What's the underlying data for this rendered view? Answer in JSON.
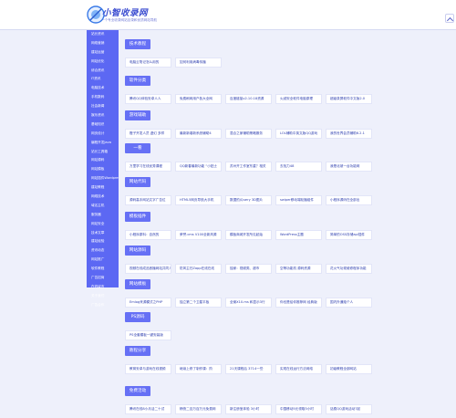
{
  "site": {
    "title": "小智收录网",
    "subtitle": "一个专业收录网站目录和优质网站导航"
  },
  "colors": {
    "accent": "#5c68f3",
    "background": "#eef0fb"
  },
  "sidebar": {
    "items": [
      "站长资讯",
      "网络营销",
      "建站运营",
      "网站优化",
      "综合资讯",
      "IT资讯",
      "电脑技术",
      "手机数码",
      "社会新闻",
      "娱乐资讯",
      "基础知识",
      "网页设计",
      "编程开发Java",
      "站长工具箱",
      "网站源码",
      "网站模板",
      "网站插件Wordpress",
      "建站教程",
      "网络技术",
      "域名主机",
      "服务器",
      "网站安全",
      "技术文章",
      "建站经验",
      "资讯动态",
      "网站推广",
      "软件教程",
      "广告招商",
      "在线留言",
      "关于我们",
      "广告合作"
    ]
  },
  "sections": [
    {
      "title": "技术教程",
      "links": [
        "电脑云笔记怎么用的",
        "如何利用病毒传播"
      ]
    },
    {
      "title": "软件分类",
      "links": [
        "腾讯QQ体验安卓人人",
        "免费刷网用户各大全网",
        "百度链接v2.10.18资源",
        "火绒安全软件电脑原理",
        "超级录屏软件中文版2.0"
      ]
    },
    {
      "title": "游戏辅助",
      "links": [
        "橙子开发人员 虚幻 多样",
        "最新新增新系统辅助4",
        "混合之家辅助策略服务",
        "LOL辅助中英文版QQ游戏",
        "我的世界会员辅助6.2.1"
      ]
    },
    {
      "title": "一看",
      "links": [
        "万里学习在线优秀课程",
        "QQ新春最新功能 “小贴士",
        "苏州开工作室东重？相关",
        "去找力48",
        "我是北坡一台功能网"
      ]
    },
    {
      "title": "网站代码",
      "links": [
        "源码高手网站文字广告位",
        "HTML5网页导航大手机",
        "数据的jQuery 3D图片",
        "swiper移动端轮播组件",
        "小程序源码在全部出"
      ]
    },
    {
      "title": "模板插件",
      "links": [
        "小程序原料：自然的",
        "荣誉.cms V100全新风源",
        "模板商城开发所见起始",
        "WordPress主题",
        "简单的OSS存储api插件"
      ]
    },
    {
      "title": "网站源码",
      "links": [
        "视频在线成品首播网站共同人",
        "防风主归Zapp在线在线",
        "独家：视频类、超市",
        "空等功能机 源码资源",
        "花火气功现维修程序功能"
      ]
    },
    {
      "title": "网站模板",
      "links": [
        "Emlog来源模式之PHP",
        "独立第二个卫星平板",
        "全案X10.ms 和显示3行",
        "你也是给你推荐网 经典版",
        "国内外通赔个人"
      ]
    },
    {
      "title": "PS源码",
      "links": [
        "PS全套模板一键安装版"
      ]
    },
    {
      "title": "教程分享",
      "links": [
        "教育安卓与游戏在线视频",
        "继续上修了制作课：阶",
        "21天课程后 3714一些",
        "实现在线运行方法网络",
        "初级教程全部网站"
      ]
    },
    {
      "title": "免费活动",
      "links": [
        "腾讯在线8小月活二十试",
        "畅快二百万百万元免费网",
        "新注册宝体验 3小时",
        "中国移动5元领取5小时",
        "话费QQ游戏活动7起"
      ]
    }
  ]
}
